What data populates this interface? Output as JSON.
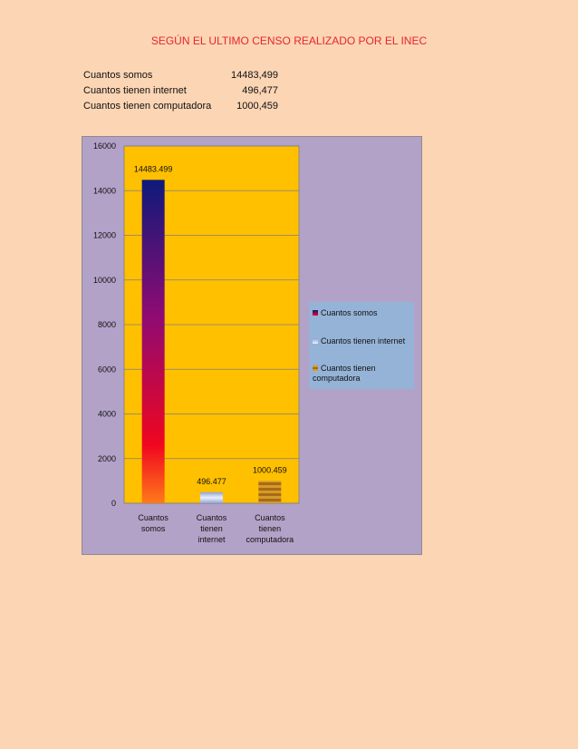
{
  "title": "SEGÚN EL ULTIMO CENSO REALIZADO POR EL INEC",
  "stats": [
    {
      "label": "Cuantos somos",
      "value": "14483,499"
    },
    {
      "label": "Cuantos tienen internet",
      "value": "496,477"
    },
    {
      "label": "Cuantos tienen computadora",
      "value": "1000,459"
    }
  ],
  "chart_data": {
    "type": "bar",
    "categories": [
      "Cuantos somos",
      "Cuantos tienen internet",
      "Cuantos tienen computadora"
    ],
    "category_tick_lines": [
      [
        "Cuantos",
        "somos"
      ],
      [
        "Cuantos",
        "tienen",
        "internet"
      ],
      [
        "Cuantos",
        "tienen",
        "computadora"
      ]
    ],
    "values": [
      14483.499,
      496.477,
      1000.459
    ],
    "data_labels": [
      "14483.499",
      "496.477",
      "1000.459"
    ],
    "ylim": [
      0,
      16000
    ],
    "yticks": [
      0,
      2000,
      4000,
      6000,
      8000,
      10000,
      12000,
      14000,
      16000
    ],
    "grid": true,
    "legend_position": "right",
    "colors": {
      "plot_background": "#ffc000",
      "chart_background": "#b3a2c7",
      "legend_background": "#95b3d7",
      "gridline": "#7f7f7f",
      "bar1_top": "#0d1a7a",
      "bar1_mid": "#8e0b73",
      "bar1_low": "#f0061f",
      "bar1_bottom": "#ff7a1a",
      "bar2_light": "#eaf0ff",
      "bar2_dark": "#8ea2d1",
      "bar3_light": "#d49a2a",
      "bar3_dark": "#a86a14"
    }
  }
}
